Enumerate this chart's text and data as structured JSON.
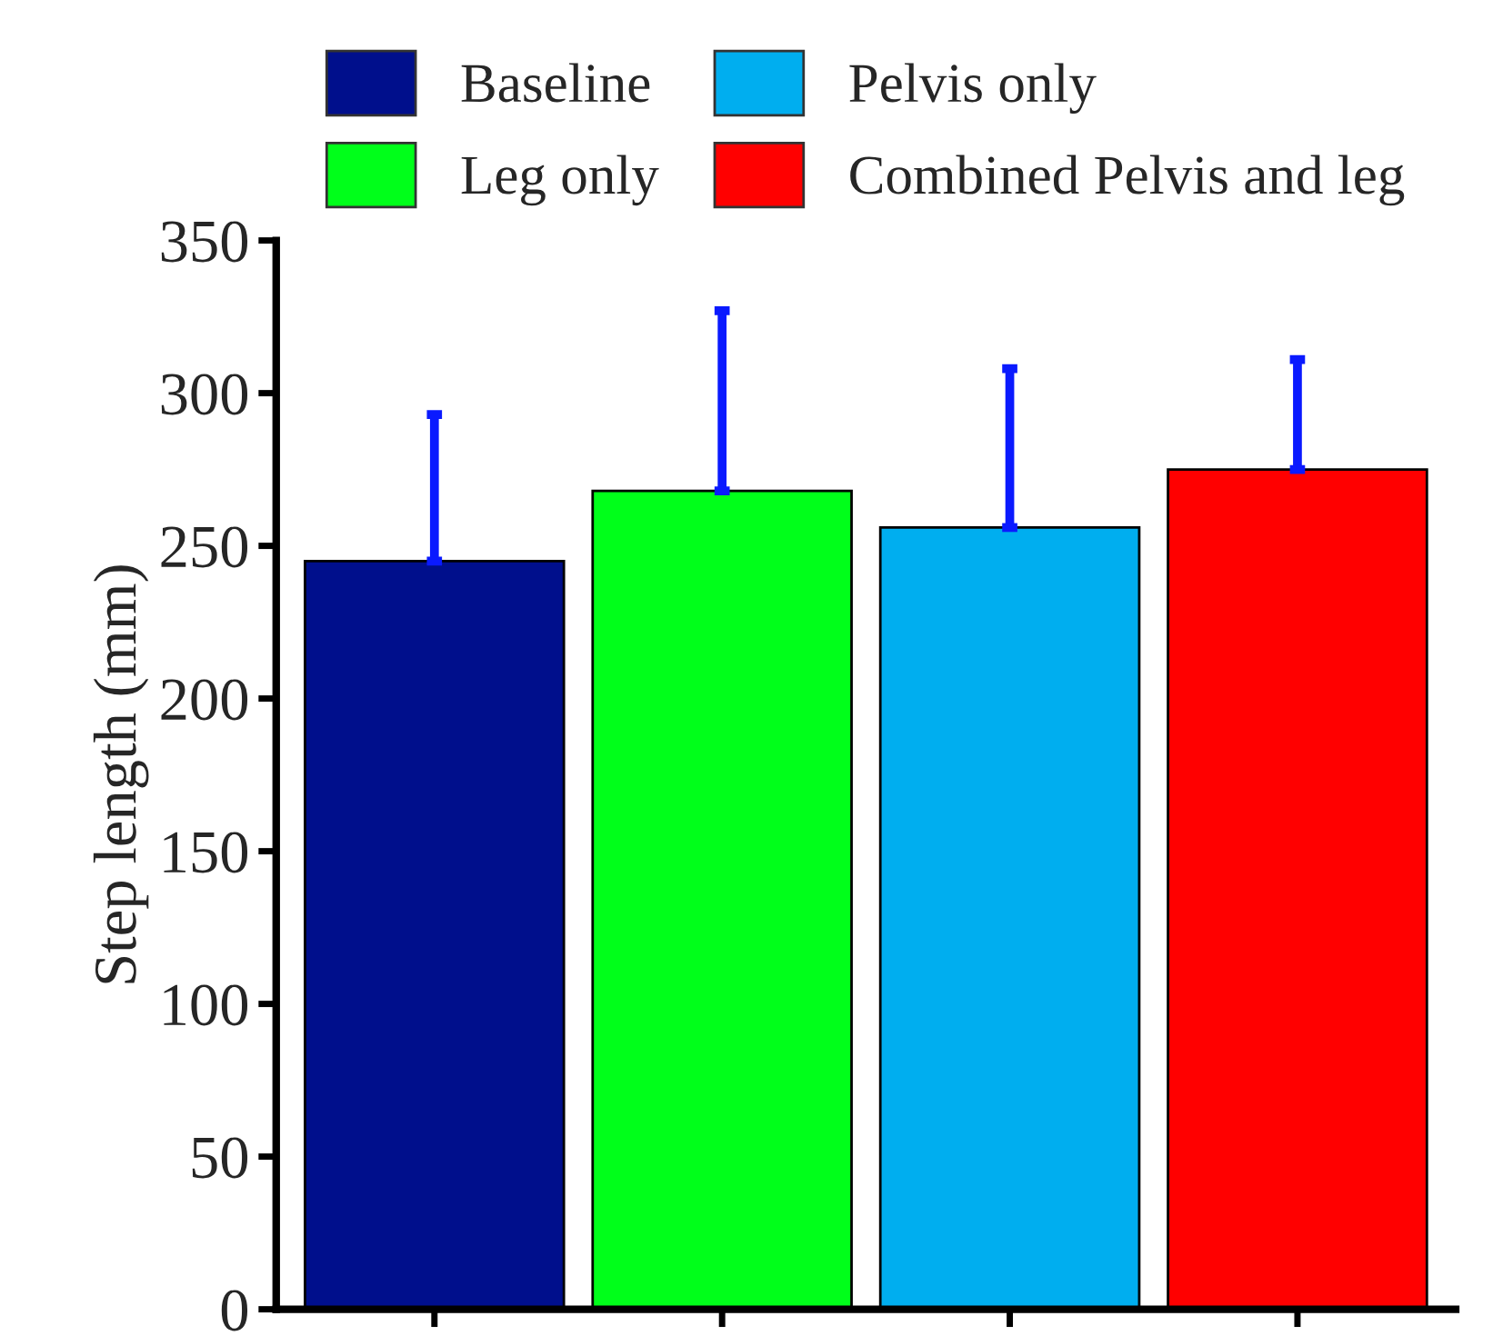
{
  "chart_data": {
    "type": "bar",
    "ylabel": "Step length (mm)",
    "categories": [
      null,
      null,
      null,
      null
    ],
    "series": [
      {
        "name": "Baseline",
        "color": "#000f8c",
        "values": [
          245,
          null,
          null,
          null
        ],
        "errors": [
          [
            245,
            293
          ],
          null,
          null,
          null
        ]
      },
      {
        "name": "Leg only",
        "color": "#00ff1a",
        "values": [
          null,
          268,
          null,
          null
        ],
        "errors": [
          null,
          [
            268,
            327
          ],
          null,
          null
        ]
      },
      {
        "name": "Pelvis only",
        "color": "#00aeef",
        "values": [
          null,
          null,
          256,
          null
        ],
        "errors": [
          null,
          null,
          [
            256,
            308
          ],
          null
        ]
      },
      {
        "name": "Combined Pelvis and leg",
        "color": "#ff0000",
        "values": [
          null,
          null,
          null,
          275
        ],
        "errors": [
          null,
          null,
          null,
          [
            275,
            311
          ]
        ]
      }
    ],
    "ylim": [
      0,
      350
    ],
    "yticks": [
      0,
      50,
      100,
      150,
      200,
      250,
      300,
      350
    ],
    "grid": false,
    "legend": "top"
  }
}
